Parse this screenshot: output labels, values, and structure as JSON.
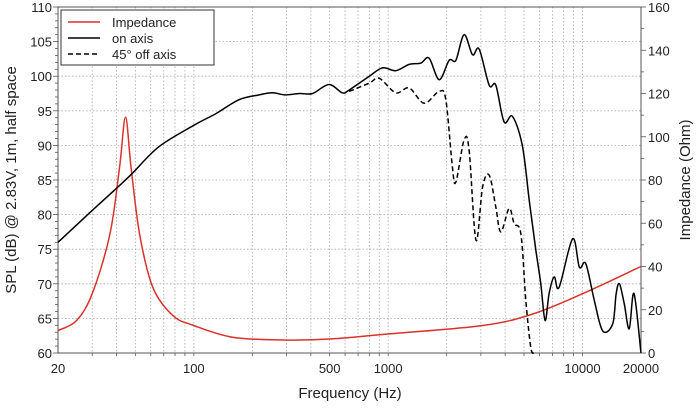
{
  "chart_data": {
    "type": "line",
    "title": "",
    "xlabel": "Frequency (Hz)",
    "ylabel": "SPL (dB) @ 2.83V, 1m, half space",
    "y2label": "Impedance (Ohm)",
    "xscale": "log",
    "xlim": [
      20,
      20000
    ],
    "ylim": [
      60,
      110
    ],
    "y2lim": [
      0,
      160
    ],
    "grid": true,
    "legend_position": "top-left",
    "x_tick_labels": [
      "20",
      "100",
      "500",
      "1000",
      "10000",
      "20000"
    ],
    "x_tick_values": [
      20,
      100,
      500,
      1000,
      10000,
      20000
    ],
    "y_ticks": [
      60,
      65,
      70,
      75,
      80,
      85,
      90,
      95,
      100,
      105,
      110
    ],
    "y2_ticks": [
      0,
      20,
      40,
      60,
      80,
      100,
      120,
      140,
      160
    ],
    "series": [
      {
        "name": "Impedance",
        "axis": "right",
        "color": "#d8332a",
        "style": "solid",
        "x": [
          20,
          24.9,
          30,
          37,
          41.5,
          44.5,
          47.5,
          52.6,
          61.5,
          78,
          100,
          158,
          286,
          512,
          1000,
          3060,
          5530,
          10000,
          20000
        ],
        "y": [
          10.4,
          15,
          27.4,
          55,
          86,
          109,
          86,
          55,
          30.4,
          17.3,
          12.7,
          7.3,
          6.0,
          6.5,
          8.8,
          12.7,
          18,
          27.4,
          40
        ]
      },
      {
        "name": "on axis",
        "axis": "left",
        "color": "#000000",
        "style": "solid",
        "x": [
          20,
          30,
          40,
          48,
          66,
          100,
          130,
          171,
          217,
          254,
          295,
          350,
          408,
          496,
          580,
          630,
          800,
          935,
          1095,
          1283,
          1473,
          1625,
          1830,
          2060,
          2230,
          2460,
          2715,
          2940,
          3310,
          3580,
          3950,
          4360,
          4900,
          5320,
          5760,
          6100,
          6420,
          6730,
          7150,
          7580,
          8890,
          9640,
          10400,
          11500,
          12700,
          14300,
          14900,
          15500,
          16400,
          17400,
          18400,
          20000
        ],
        "y": [
          76,
          80.6,
          83.8,
          85.9,
          89.8,
          92.9,
          94.6,
          96.6,
          97.3,
          97.6,
          97.3,
          97.5,
          97.5,
          98.8,
          97.6,
          98.0,
          100,
          101.2,
          100.8,
          101.7,
          101.9,
          102.6,
          99.5,
          102.3,
          102.3,
          106,
          103.1,
          103.9,
          98.7,
          98.7,
          93.4,
          94.2,
          90,
          82.1,
          74.8,
          70,
          64.7,
          68.6,
          71,
          69.5,
          76.5,
          72.4,
          72.9,
          67.6,
          63.2,
          64.2,
          68.6,
          70,
          67.1,
          63.5,
          68.6,
          60
        ]
      },
      {
        "name": "45° off axis",
        "axis": "left",
        "color": "#000000",
        "style": "dashed",
        "x": [
          630,
          800,
          900,
          1095,
          1283,
          1530,
          1830,
          1980,
          2140,
          2230,
          2460,
          2610,
          2830,
          3060,
          3310,
          3580,
          3800,
          4190,
          4450,
          4820,
          5110,
          5420,
          5640
        ],
        "y": [
          97.8,
          99,
          99.7,
          97.6,
          98.3,
          96.1,
          97.8,
          96.6,
          86.9,
          84.7,
          90.8,
          89.3,
          76.3,
          84,
          85.7,
          81.1,
          77.5,
          80.9,
          78.7,
          77.2,
          67.6,
          60.8,
          60
        ]
      }
    ]
  }
}
